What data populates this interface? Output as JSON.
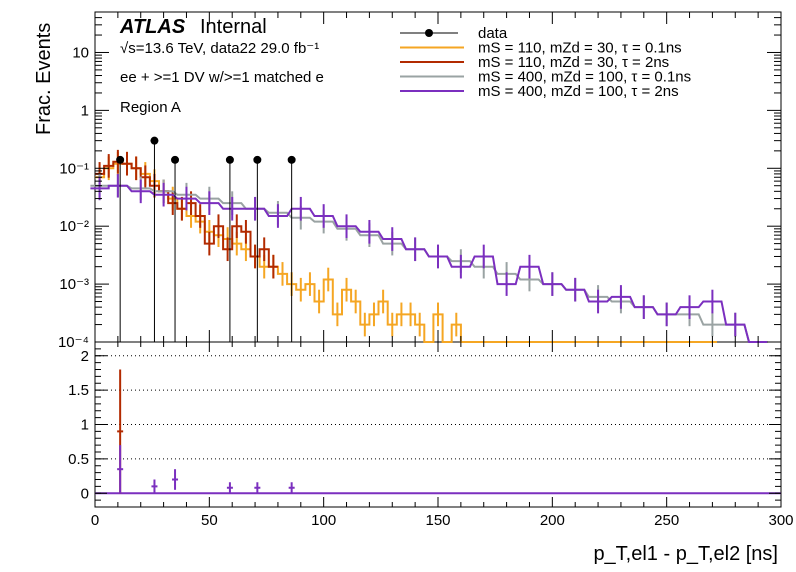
{
  "chart_data": {
    "type": "line",
    "experiment": "ATLAS",
    "status": "Internal",
    "energy_label": "√s=13.6 TeV, data22 29.0 fb⁻¹",
    "selection_label": "ee + >=1 DV w/>=1 matched e",
    "region_label": "Region A",
    "xlabel": "p_T,el1 - p_T,el2 [ns]",
    "ylabel_top": "Frac. Events",
    "xlim": [
      0,
      300
    ],
    "ylim_top": [
      0.0001,
      50
    ],
    "ylim_bottom": [
      -0.2,
      2.2
    ],
    "log_y_top": true,
    "grid_bottom": "dotted horizontal",
    "legend_position": "top-right",
    "x_ticks": [
      "0",
      "50",
      "100",
      "150",
      "200",
      "250",
      "300"
    ],
    "y_ticks_top": [
      "10⁻⁴",
      "10⁻³",
      "10⁻²",
      "10⁻¹",
      "1",
      "10"
    ],
    "y_ticks_bottom": [
      "0",
      "0.5",
      "1",
      "1.5",
      "2"
    ],
    "legend": [
      {
        "label": "data",
        "color": "#000000",
        "style": "marker"
      },
      {
        "label": "mS = 110, mZd = 30, τ = 0.1ns",
        "color": "#f5a623",
        "style": "line"
      },
      {
        "label": "mS = 110, mZd = 30, τ = 2ns",
        "color": "#b22a00",
        "style": "line"
      },
      {
        "label": "mS = 400, mZd = 100, τ = 0.1ns",
        "color": "#9aa3a3",
        "style": "line"
      },
      {
        "label": "mS = 400, mZd = 100, τ = 2ns",
        "color": "#7b2fbf",
        "style": "line"
      }
    ],
    "data_points": {
      "x": [
        11,
        26,
        35,
        59,
        71,
        86
      ],
      "y": [
        0.14,
        0.3,
        0.14,
        0.14,
        0.14,
        0.14
      ]
    },
    "series": [
      {
        "name": "mS = 110, mZd = 30, τ = 0.1ns",
        "color": "#f5a623",
        "x": [
          2,
          6,
          10,
          14,
          18,
          22,
          26,
          30,
          34,
          38,
          42,
          46,
          50,
          54,
          58,
          62,
          66,
          70,
          74,
          78,
          82,
          86,
          90,
          94,
          98,
          102,
          106,
          110,
          114,
          118,
          122,
          126,
          130,
          134,
          138,
          142,
          146,
          150,
          154,
          158,
          162,
          166,
          170,
          174,
          178,
          182,
          186,
          190,
          194,
          198,
          202,
          206,
          210,
          214,
          218,
          222,
          226,
          230,
          234,
          238,
          242,
          246,
          250,
          254,
          258,
          262,
          266,
          270
        ],
        "y": [
          0.07,
          0.1,
          0.12,
          0.12,
          0.1,
          0.08,
          0.06,
          0.04,
          0.03,
          0.02,
          0.015,
          0.012,
          0.008,
          0.007,
          0.006,
          0.005,
          0.004,
          0.003,
          0.002,
          0.002,
          0.0015,
          0.001,
          0.0008,
          0.001,
          0.0005,
          0.0012,
          0.0003,
          0.0008,
          0.0005,
          0.0002,
          0.0003,
          0.0005,
          0.0002,
          0.0003,
          0.0003,
          0.0002,
          0.0001,
          0.0003,
          0.0001,
          0.0002,
          0.0001,
          0.0001,
          0.0001,
          0.0001,
          0.0001,
          0.0001,
          0.0001,
          0.0001,
          0.0001,
          0.0001,
          0.0001,
          0.0001,
          0.0001,
          0.0001,
          0.0001,
          0.0001,
          0.0001,
          0.0001,
          0.0001,
          0.0001,
          0.0001,
          0.0001,
          0.0001,
          0.0001,
          0.0001,
          0.0001,
          0.0001,
          0.0001
        ]
      },
      {
        "name": "mS = 110, mZd = 30, τ = 2ns",
        "color": "#b22a00",
        "x": [
          2,
          6,
          10,
          14,
          18,
          22,
          26,
          30,
          34,
          38,
          42,
          46,
          50,
          54,
          58,
          62,
          66,
          70,
          74,
          78
        ],
        "y": [
          0.08,
          0.11,
          0.13,
          0.12,
          0.1,
          0.07,
          0.05,
          0.04,
          0.025,
          0.02,
          0.025,
          0.015,
          0.005,
          0.01,
          0.004,
          0.01,
          0.008,
          0.003,
          0.004,
          0.002
        ]
      },
      {
        "name": "mS = 400, mZd = 100, τ = 0.1ns",
        "color": "#9aa3a3",
        "x": [
          2,
          10,
          20,
          30,
          40,
          50,
          60,
          70,
          80,
          90,
          100,
          110,
          120,
          130,
          140,
          150,
          160,
          170,
          180,
          190,
          200,
          210,
          220,
          230,
          240,
          250,
          260,
          270,
          280,
          290
        ],
        "y": [
          0.05,
          0.05,
          0.045,
          0.04,
          0.035,
          0.03,
          0.025,
          0.02,
          0.017,
          0.014,
          0.012,
          0.009,
          0.007,
          0.005,
          0.004,
          0.003,
          0.0025,
          0.002,
          0.0015,
          0.0012,
          0.001,
          0.0008,
          0.0006,
          0.0005,
          0.0004,
          0.0003,
          0.0003,
          0.0002,
          0.0002,
          0.0001
        ]
      },
      {
        "name": "mS = 400, mZd = 100, τ = 2ns",
        "color": "#7b2fbf",
        "x": [
          2,
          10,
          20,
          30,
          40,
          50,
          60,
          70,
          80,
          90,
          100,
          110,
          120,
          130,
          140,
          150,
          160,
          170,
          180,
          190,
          200,
          210,
          220,
          230,
          240,
          250,
          260,
          270,
          280,
          290
        ],
        "y": [
          0.045,
          0.05,
          0.04,
          0.035,
          0.03,
          0.025,
          0.02,
          0.02,
          0.015,
          0.02,
          0.015,
          0.01,
          0.008,
          0.006,
          0.004,
          0.003,
          0.002,
          0.003,
          0.001,
          0.002,
          0.001,
          0.0008,
          0.0005,
          0.0006,
          0.0004,
          0.0003,
          0.0004,
          0.0005,
          0.0002,
          0.0001
        ]
      }
    ],
    "ratio": {
      "x": [
        11,
        26,
        35,
        59,
        71,
        86
      ],
      "sig_b_red": [
        0.9,
        0,
        0,
        0,
        0,
        0
      ],
      "sig_b_purple": [
        0.35,
        0.1,
        0.2,
        0.08,
        0.08,
        0.08
      ],
      "err_red": [
        0.9,
        0,
        0,
        0,
        0,
        0
      ],
      "err_purple": [
        0.35,
        0.1,
        0.15,
        0.08,
        0.08,
        0.08
      ]
    }
  }
}
